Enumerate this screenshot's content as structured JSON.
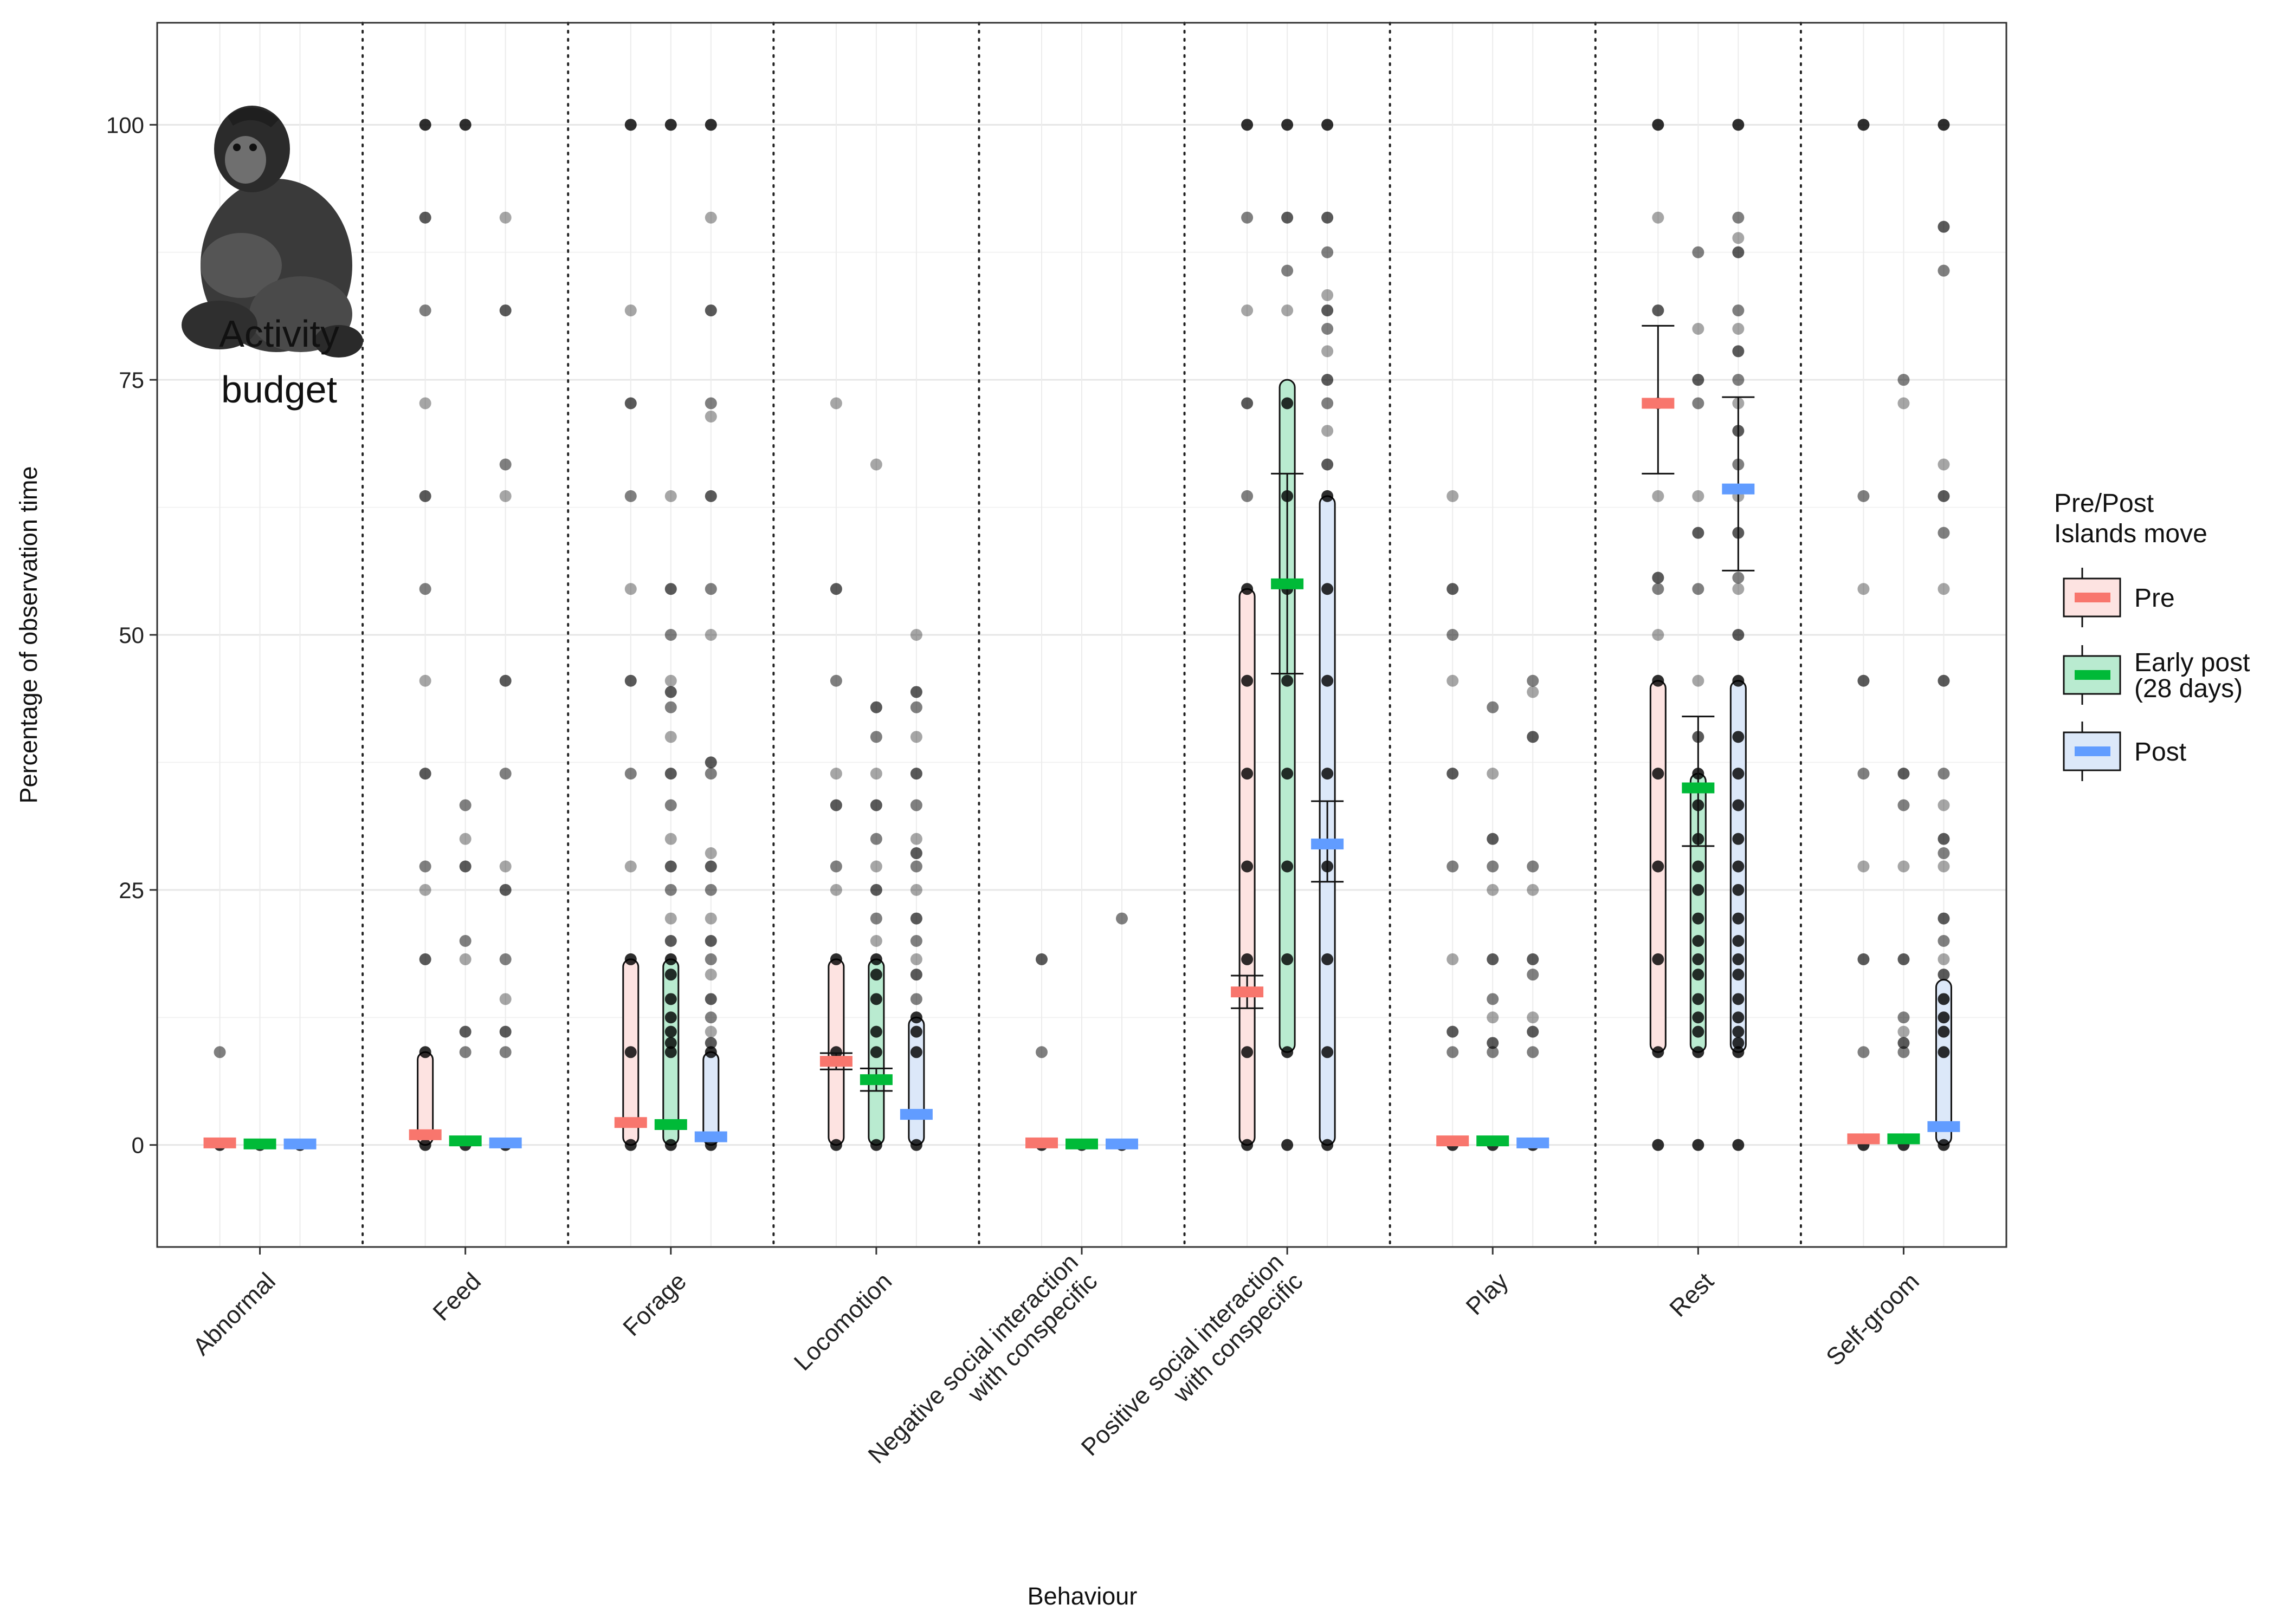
{
  "chart_data": {
    "type": "scatter",
    "caption": [
      "Activity",
      "budget"
    ],
    "xlabel": "Behaviour",
    "ylabel": "Percentage of observation time",
    "ylim": [
      -10,
      110
    ],
    "yticks": [
      0,
      25,
      50,
      75,
      100
    ],
    "grid": true,
    "legend": {
      "position": "right",
      "title": [
        "Pre/Post",
        "Islands move"
      ],
      "entries": [
        {
          "key": "pre",
          "label": [
            "Pre"
          ]
        },
        {
          "key": "early",
          "label": [
            "Early post",
            "(28 days)"
          ]
        },
        {
          "key": "post",
          "label": [
            "Post"
          ]
        }
      ]
    },
    "colors": {
      "pre": "#F8766D",
      "early": "#00BA38",
      "post": "#619CFF",
      "pre_fill": "#FDE3E1",
      "early_fill": "#B9EBD0",
      "post_fill": "#DCE8F9"
    },
    "categories": [
      {
        "label": [
          "Abnormal"
        ],
        "groups": {
          "pre": {
            "mean": 0.2,
            "box": null,
            "err": null,
            "points": [
              0,
              9.1
            ]
          },
          "early": {
            "mean": 0.1,
            "box": null,
            "err": null,
            "points": [
              0
            ]
          },
          "post": {
            "mean": 0.1,
            "box": null,
            "err": null,
            "points": [
              0
            ]
          }
        }
      },
      {
        "label": [
          "Feed"
        ],
        "groups": {
          "pre": {
            "mean": 1.0,
            "box": [
              0,
              9.1
            ],
            "err": null,
            "points": [
              0,
              9.1,
              18.2,
              25,
              27.3,
              36.4,
              45.5,
              54.5,
              63.6,
              72.7,
              81.8,
              90.9,
              100
            ]
          },
          "early": {
            "mean": 0.4,
            "box": null,
            "err": null,
            "points": [
              0,
              9.1,
              11.1,
              18.2,
              20,
              27.3,
              30,
              33.3,
              100
            ]
          },
          "post": {
            "mean": 0.2,
            "box": null,
            "err": null,
            "points": [
              0,
              9.1,
              11.1,
              14.3,
              18.2,
              25,
              27.3,
              36.4,
              45.5,
              63.6,
              66.7,
              81.8,
              90.9
            ]
          }
        }
      },
      {
        "label": [
          "Forage"
        ],
        "groups": {
          "pre": {
            "mean": 2.2,
            "box": [
              0,
              18.2
            ],
            "err": null,
            "points": [
              0,
              9.1,
              18.2,
              27.3,
              36.4,
              45.5,
              54.5,
              63.6,
              72.7,
              81.8,
              100
            ]
          },
          "early": {
            "mean": 2.0,
            "box": [
              0,
              18.2
            ],
            "err": null,
            "points": [
              0,
              9.1,
              10,
              11.1,
              12.5,
              14.3,
              16.7,
              18.2,
              20,
              22.2,
              25,
              27.3,
              30,
              33.3,
              36.4,
              40,
              42.9,
              44.4,
              45.5,
              50,
              54.5,
              63.6,
              100
            ]
          },
          "post": {
            "mean": 0.8,
            "box": [
              0,
              9.1
            ],
            "err": null,
            "points": [
              0,
              9.1,
              10,
              11.1,
              12.5,
              14.3,
              16.7,
              18.2,
              20,
              22.2,
              25,
              27.3,
              28.6,
              36.4,
              37.5,
              50,
              54.5,
              63.6,
              71.4,
              72.7,
              81.8,
              90.9,
              100
            ]
          }
        }
      },
      {
        "label": [
          "Locomotion"
        ],
        "groups": {
          "pre": {
            "mean": 8.2,
            "box": [
              0,
              18.2
            ],
            "err": [
              7.4,
              9.0
            ],
            "points": [
              0,
              9.1,
              18.2,
              25,
              27.3,
              33.3,
              36.4,
              45.5,
              54.5,
              72.7
            ]
          },
          "early": {
            "mean": 6.4,
            "box": [
              0,
              18.2
            ],
            "err": [
              5.3,
              7.5
            ],
            "points": [
              0,
              9.1,
              11.1,
              14.3,
              16.7,
              18.2,
              20,
              22.2,
              25,
              27.3,
              30,
              33.3,
              36.4,
              40,
              42.9,
              66.7
            ]
          },
          "post": {
            "mean": 3.0,
            "box": [
              0,
              12.5
            ],
            "err": null,
            "points": [
              0,
              9.1,
              11.1,
              12.5,
              14.3,
              16.7,
              18.2,
              20,
              22.2,
              25,
              27.3,
              28.6,
              30,
              33.3,
              36.4,
              40,
              42.9,
              44.4,
              50
            ]
          }
        }
      },
      {
        "label": [
          "Negative social interaction",
          "with conspecific"
        ],
        "groups": {
          "pre": {
            "mean": 0.2,
            "box": null,
            "err": null,
            "points": [
              0,
              9.1,
              18.2
            ]
          },
          "early": {
            "mean": 0.1,
            "box": null,
            "err": null,
            "points": [
              0
            ]
          },
          "post": {
            "mean": 0.1,
            "box": null,
            "err": null,
            "points": [
              0,
              22.2
            ]
          }
        }
      },
      {
        "label": [
          "Positive social interaction",
          "with conspecific"
        ],
        "groups": {
          "pre": {
            "mean": 15.0,
            "box": [
              0,
              54.5
            ],
            "err": [
              13.4,
              16.6
            ],
            "points": [
              0,
              9.1,
              18.2,
              27.3,
              36.4,
              45.5,
              54.5,
              63.6,
              72.7,
              81.8,
              90.9,
              100
            ]
          },
          "early": {
            "mean": 55.0,
            "box": [
              9.1,
              75
            ],
            "err": [
              46.2,
              65.8
            ],
            "points": [
              0,
              9.1,
              18.2,
              27.3,
              36.4,
              45.5,
              54.5,
              63.6,
              72.7,
              81.8,
              85.7,
              90.9,
              100
            ]
          },
          "post": {
            "mean": 29.5,
            "box": [
              0,
              63.6
            ],
            "err": [
              25.8,
              33.7
            ],
            "points": [
              0,
              9.1,
              18.2,
              27.3,
              36.4,
              45.5,
              54.5,
              63.6,
              66.7,
              70,
              72.7,
              75,
              77.8,
              80,
              81.8,
              83.3,
              87.5,
              90.9,
              100
            ]
          }
        }
      },
      {
        "label": [
          "Play"
        ],
        "groups": {
          "pre": {
            "mean": 0.4,
            "box": null,
            "err": null,
            "points": [
              0,
              9.1,
              11.1,
              18.2,
              27.3,
              36.4,
              45.5,
              50,
              54.5,
              63.6
            ]
          },
          "early": {
            "mean": 0.4,
            "box": null,
            "err": null,
            "points": [
              0,
              9.1,
              10,
              12.5,
              14.3,
              18.2,
              25,
              27.3,
              30,
              36.4,
              42.9
            ]
          },
          "post": {
            "mean": 0.2,
            "box": null,
            "err": null,
            "points": [
              0,
              9.1,
              11.1,
              12.5,
              16.7,
              18.2,
              25,
              27.3,
              40,
              44.4,
              45.5
            ]
          }
        }
      },
      {
        "label": [
          "Rest"
        ],
        "groups": {
          "pre": {
            "mean": 72.7,
            "box": [
              9.1,
              45.5
            ],
            "err": [
              65.8,
              80.3
            ],
            "points": [
              0,
              9.1,
              18.2,
              27.3,
              36.4,
              45.5,
              50,
              54.5,
              55.6,
              63.6,
              72.7,
              81.8,
              90.9,
              100
            ]
          },
          "early": {
            "mean": 35.0,
            "box": [
              9.1,
              36.4
            ],
            "err": [
              29.3,
              42.0
            ],
            "points": [
              0,
              9.1,
              11.1,
              12.5,
              14.3,
              16.7,
              18.2,
              20,
              22.2,
              25,
              27.3,
              30,
              33.3,
              36.4,
              40,
              45.5,
              54.5,
              60,
              63.6,
              72.7,
              75,
              80,
              87.5
            ]
          },
          "post": {
            "mean": 64.3,
            "box": [
              9.1,
              45.5
            ],
            "err": [
              56.3,
              73.3
            ],
            "points": [
              0,
              9.1,
              10,
              11.1,
              12.5,
              14.3,
              16.7,
              18.2,
              20,
              22.2,
              25,
              27.3,
              30,
              33.3,
              36.4,
              40,
              45.5,
              50,
              54.5,
              55.6,
              60,
              63.6,
              66.7,
              70,
              72.7,
              75,
              77.8,
              80,
              81.8,
              87.5,
              88.9,
              90.9,
              100
            ]
          }
        }
      },
      {
        "label": [
          "Self-groom"
        ],
        "groups": {
          "pre": {
            "mean": 0.6,
            "box": null,
            "err": null,
            "points": [
              0,
              9.1,
              18.2,
              27.3,
              36.4,
              45.5,
              54.5,
              63.6,
              100
            ]
          },
          "early": {
            "mean": 0.6,
            "box": null,
            "err": null,
            "points": [
              0,
              9.1,
              10,
              11.1,
              12.5,
              18.2,
              27.3,
              33.3,
              36.4,
              72.7,
              75
            ]
          },
          "post": {
            "mean": 1.8,
            "box": [
              0,
              16.2
            ],
            "err": null,
            "points": [
              0,
              9.1,
              11.1,
              12.5,
              14.3,
              16.7,
              18.2,
              20,
              22.2,
              27.3,
              28.6,
              30,
              33.3,
              36.4,
              45.5,
              54.5,
              60,
              63.6,
              66.7,
              85.7,
              90,
              100
            ]
          }
        }
      }
    ]
  }
}
